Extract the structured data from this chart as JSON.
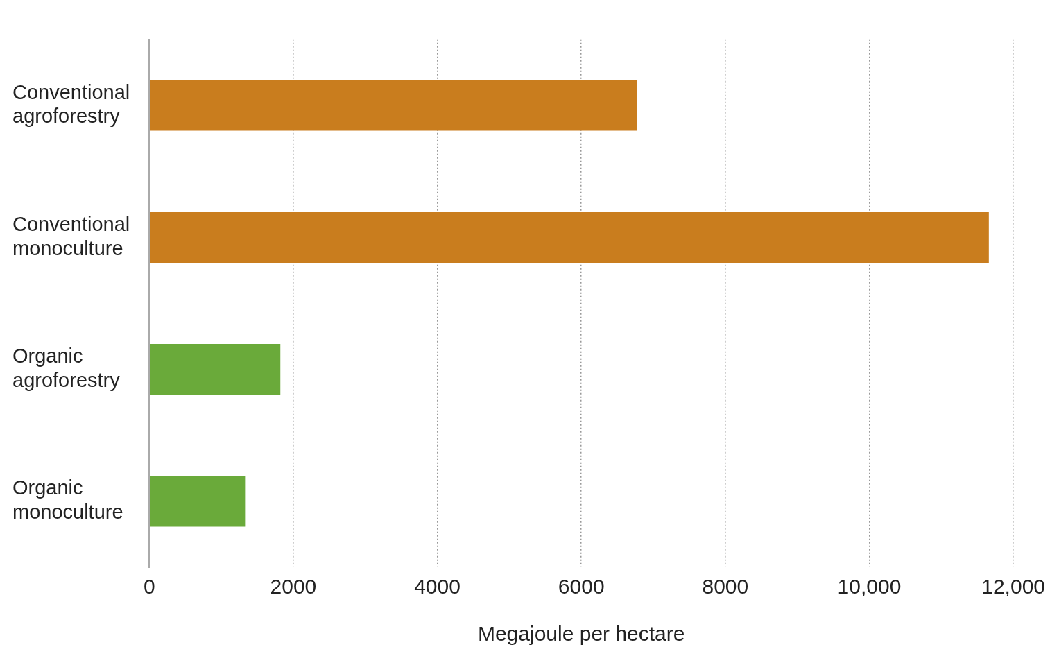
{
  "chart_data": {
    "type": "bar",
    "orientation": "horizontal",
    "xlabel": "Megajoule per hectare",
    "categories": [
      "Conventional agroforestry",
      "Conventional monoculture",
      "Organic agroforestry",
      "Organic monoculture"
    ],
    "values": [
      6770,
      11660,
      1820,
      1330
    ],
    "colors": [
      "#c97d1e",
      "#c97d1e",
      "#6aaa3a",
      "#6aaa3a"
    ],
    "xlim": [
      0,
      12000
    ],
    "xticks": [
      0,
      2000,
      4000,
      6000,
      8000,
      {
        "value": 10000,
        "label": "10,000"
      },
      {
        "value": 12000,
        "label": "12,000"
      }
    ],
    "grid": "x"
  }
}
